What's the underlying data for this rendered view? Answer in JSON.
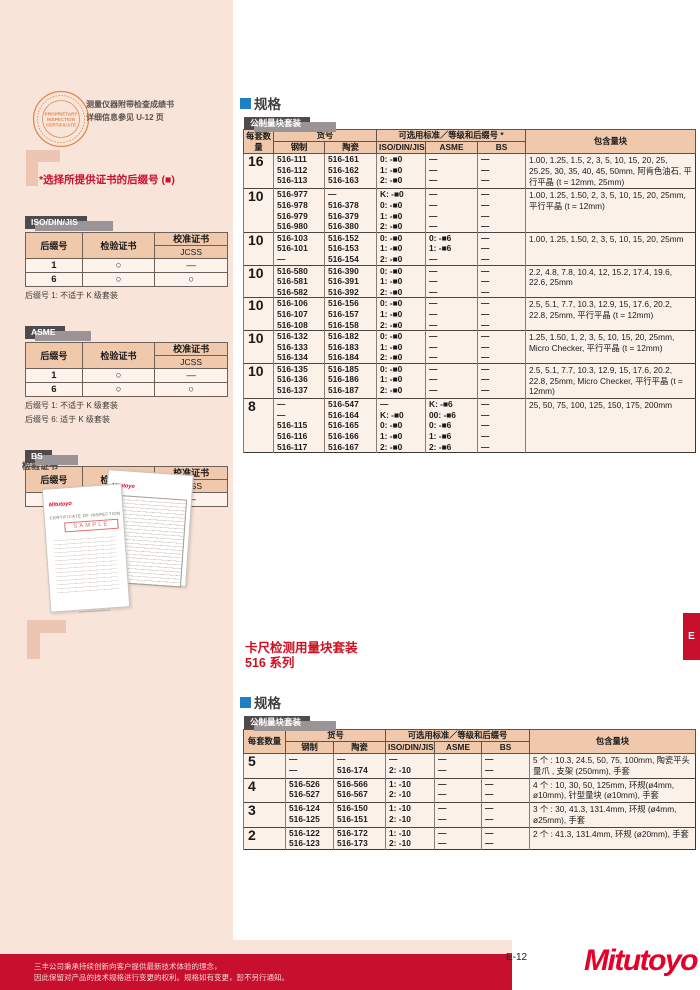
{
  "sidebar": {
    "stamp": {
      "title_lines": [
        "PROPRIETARY",
        "INSPECTION",
        "CERTIFICATE"
      ]
    },
    "stamp_note_line1": "测量仪器附带检查成绩书",
    "stamp_note_line2": "详细信息参见 U-12 页",
    "suffix_note": "*选择所提供证书的后缀号 (■)",
    "cert_header": {
      "suffix": "后缀号",
      "inspection": "检验证书",
      "calibration": "校准证书",
      "jcss": "JCSS"
    },
    "cert_tables": [
      {
        "tab": "ISO/DIN/JIS",
        "rows": [
          [
            "1",
            "○",
            "—"
          ],
          [
            "6",
            "○",
            "○"
          ]
        ],
        "notes": [
          "后缀号 1: 不适于 K 级套装"
        ]
      },
      {
        "tab": "ASME",
        "rows": [
          [
            "1",
            "○",
            "—"
          ],
          [
            "6",
            "○",
            "○"
          ]
        ],
        "notes": [
          "后缀号 1: 不适于 K 级套装",
          "后缀号 6: 适于 K 级套装"
        ]
      },
      {
        "tab": "BS",
        "rows": [
          [
            "1",
            "○",
            "—"
          ]
        ],
        "notes": []
      }
    ],
    "cert_section_label": "检验证书",
    "cert_doc": {
      "brand": "Mitutoyo",
      "title": "CERTIFICATE OF INSPECTION",
      "sample": "SAMPLE"
    }
  },
  "spec1": {
    "heading": "规格",
    "tab": "公制量块套装",
    "headers": {
      "qty": "每套数量",
      "part": "货号",
      "steel": "钢制",
      "ceramic": "陶瓷",
      "std": "可选用标准／等级和后缀号 *",
      "iso": "ISO/DIN/JIS",
      "asme": "ASME",
      "bs": "BS",
      "blocks": "包含量块"
    },
    "rows": [
      {
        "qty": "16",
        "steel": [
          "516-111",
          "516-112",
          "516-113"
        ],
        "ceramic": [
          "516-161",
          "516-162",
          "516-163"
        ],
        "iso": [
          "0: -■0",
          "1: -■0",
          "2: -■0"
        ],
        "asme": [
          "—",
          "—",
          "—"
        ],
        "bs": [
          "—",
          "—",
          "—"
        ],
        "blocks": "1.00, 1.25, 1.5, 2, 3, 5, 10, 15, 20, 25, 25.25, 30, 35, 40, 45, 50mm, 阿肯色油石, 平行平晶 (t = 12mm, 25mm)"
      },
      {
        "qty": "10",
        "steel": [
          "516-977",
          "516-978",
          "516-979",
          "516-980"
        ],
        "ceramic": [
          "—",
          "516-378",
          "516-379",
          "516-380"
        ],
        "iso": [
          "K: -■0",
          "0: -■0",
          "1: -■0",
          "2: -■0"
        ],
        "asme": [
          "—",
          "—",
          "—",
          "—"
        ],
        "bs": [
          "—",
          "—",
          "—",
          "—"
        ],
        "blocks": "1.00, 1.25, 1.50, 2, 3, 5, 10, 15, 20, 25mm, 平行平晶 (t = 12mm)"
      },
      {
        "qty": "10",
        "steel": [
          "516-103",
          "516-101",
          "—"
        ],
        "ceramic": [
          "516-152",
          "516-153",
          "516-154"
        ],
        "iso": [
          "0: -■0",
          "1: -■0",
          "2: -■0"
        ],
        "asme": [
          "0: -■6",
          "1: -■6",
          "—"
        ],
        "bs": [
          "—",
          "—",
          "—"
        ],
        "blocks": "1.00, 1.25, 1.50, 2, 3, 5, 10, 15, 20, 25mm"
      },
      {
        "qty": "10",
        "steel": [
          "516-580",
          "516-581",
          "516-582"
        ],
        "ceramic": [
          "516-390",
          "516-391",
          "516-392"
        ],
        "iso": [
          "0: -■0",
          "1: -■0",
          "2: -■0"
        ],
        "asme": [
          "—",
          "—",
          "—"
        ],
        "bs": [
          "—",
          "—",
          "—"
        ],
        "blocks": "2.2, 4.8, 7.8, 10.4, 12, 15.2, 17.4, 19.6, 22.6, 25mm"
      },
      {
        "qty": "10",
        "steel": [
          "516-106",
          "516-107",
          "516-108"
        ],
        "ceramic": [
          "516-156",
          "516-157",
          "516-158"
        ],
        "iso": [
          "0: -■0",
          "1: -■0",
          "2: -■0"
        ],
        "asme": [
          "—",
          "—",
          "—"
        ],
        "bs": [
          "—",
          "—",
          "—"
        ],
        "blocks": "2.5, 5.1, 7.7, 10.3, 12.9, 15, 17.6, 20.2, 22.8, 25mm, 平行平晶 (t = 12mm)"
      },
      {
        "qty": "10",
        "steel": [
          "516-132",
          "516-133",
          "516-134"
        ],
        "ceramic": [
          "516-182",
          "516-183",
          "516-184"
        ],
        "iso": [
          "0: -■0",
          "1: -■0",
          "2: -■0"
        ],
        "asme": [
          "—",
          "—",
          "—"
        ],
        "bs": [
          "—",
          "—",
          "—"
        ],
        "blocks": "1.25, 1.50, 1, 2, 3, 5, 10, 15, 20, 25mm, Micro Checker, 平行平晶 (t = 12mm)"
      },
      {
        "qty": "10",
        "steel": [
          "516-135",
          "516-136",
          "516-137"
        ],
        "ceramic": [
          "516-185",
          "516-186",
          "516-187"
        ],
        "iso": [
          "0: -■0",
          "1: -■0",
          "2: -■0"
        ],
        "asme": [
          "—",
          "—",
          "—"
        ],
        "bs": [
          "—",
          "—",
          "—"
        ],
        "blocks": "2.5, 5.1, 7.7, 10.3, 12.9, 15, 17.6, 20.2, 22.8, 25mm, Micro Checker, 平行平晶 (t = 12mm)"
      },
      {
        "qty": "8",
        "steel": [
          "—",
          "—",
          "516-115",
          "516-116",
          "516-117"
        ],
        "ceramic": [
          "516-547",
          "516-164",
          "516-165",
          "516-166",
          "516-167"
        ],
        "iso": [
          "—",
          "K: -■0",
          "0: -■0",
          "1: -■0",
          "2: -■0"
        ],
        "asme": [
          "K: -■6",
          "00: -■6",
          "0: -■6",
          "1: -■6",
          "2: -■6"
        ],
        "bs": [
          "—",
          "—",
          "—",
          "—",
          "—"
        ],
        "blocks": "25, 50, 75, 100, 125, 150, 175, 200mm"
      }
    ]
  },
  "series": {
    "line1": "卡尺检测用量块套装",
    "line2": "516 系列"
  },
  "spec2": {
    "heading": "规格",
    "tab": "公制量块套装",
    "headers": {
      "qty": "每套数量",
      "part": "货号",
      "steel": "钢制",
      "ceramic": "陶瓷",
      "std": "可选用标准／等级和后缀号",
      "iso": "ISO/DIN/JIS",
      "asme": "ASME",
      "bs": "BS",
      "blocks": "包含量块"
    },
    "rows": [
      {
        "qty": "5",
        "steel": [
          "—",
          "—"
        ],
        "ceramic": [
          "—",
          "516-174"
        ],
        "iso": [
          "—",
          "2: -10"
        ],
        "asme": [
          "—",
          "—"
        ],
        "bs": [
          "—",
          "—"
        ],
        "blocks": "5 个 : 10.3, 24.5, 50, 75, 100mm, 陶瓷平头量爪 , 支架 (250mm), 手套"
      },
      {
        "qty": "4",
        "steel": [
          "516-526",
          "516-527"
        ],
        "ceramic": [
          "516-566",
          "516-567"
        ],
        "iso": [
          "1: -10",
          "2: -10"
        ],
        "asme": [
          "—",
          "—"
        ],
        "bs": [
          "—",
          "—"
        ],
        "blocks": "4 个 : 10, 30, 50, 125mm, 环规(ø4mm, ø10mm), 针型量块 (ø10mm), 手套"
      },
      {
        "qty": "3",
        "steel": [
          "516-124",
          "516-125"
        ],
        "ceramic": [
          "516-150",
          "516-151"
        ],
        "iso": [
          "1: -10",
          "2: -10"
        ],
        "asme": [
          "—",
          "—"
        ],
        "bs": [
          "—",
          "—"
        ],
        "blocks": "3 个 : 30, 41.3, 131.4mm, 环规 (ø4mm, ø25mm), 手套"
      },
      {
        "qty": "2",
        "steel": [
          "516-122",
          "516-123"
        ],
        "ceramic": [
          "516-172",
          "516-173"
        ],
        "iso": [
          "1: -10",
          "2: -10"
        ],
        "asme": [
          "—",
          "—"
        ],
        "bs": [
          "—",
          "—"
        ],
        "blocks": "2 个 : 41.3, 131.4mm, 环规 (ø20mm), 手套"
      }
    ]
  },
  "footer": {
    "line1": "三丰公司秉承持续创新向客户提供最新技术体验的理念，",
    "line2": "因此保留对产品的技术规格进行变更的权利。规格如有变更，恕不另行通知。",
    "page": "E-12",
    "logo": "Mitutoyo"
  },
  "side_tab": "E"
}
